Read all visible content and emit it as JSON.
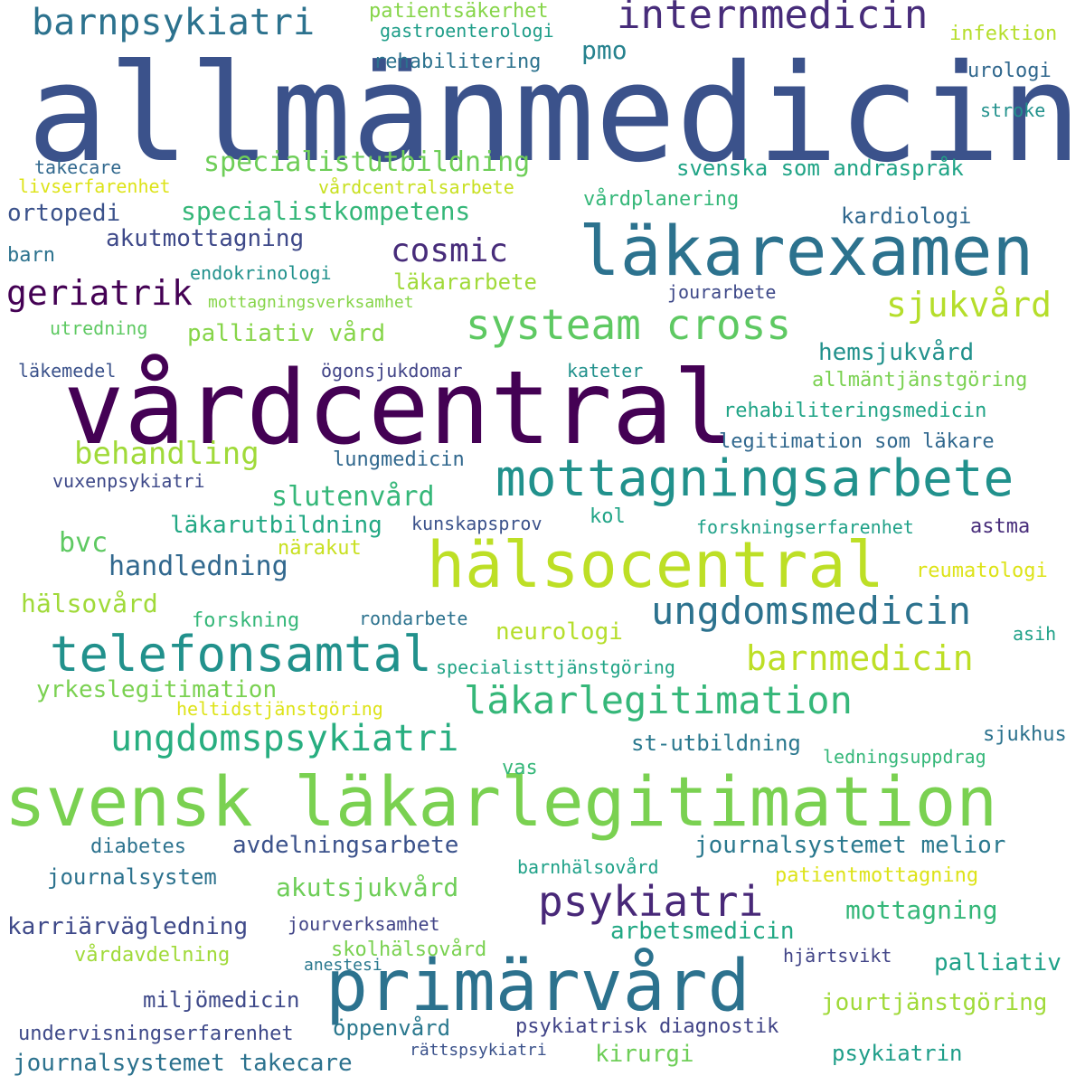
{
  "words": [
    {
      "text": "allmänmedicin",
      "color": "#3b528b"
    },
    {
      "text": "vårdcentral",
      "color": "#440154"
    },
    {
      "text": "svensk läkarlegitimation",
      "color": "#7ad151"
    },
    {
      "text": "primärvård",
      "color": "#2c728e"
    },
    {
      "text": "hälsocentral",
      "color": "#bddf26"
    },
    {
      "text": "läkarexamen",
      "color": "#2c728e"
    },
    {
      "text": "mottagningsarbete",
      "color": "#21918c"
    },
    {
      "text": "telefonsamtal",
      "color": "#21918c"
    },
    {
      "text": "psykiatri",
      "color": "#482878"
    },
    {
      "text": "internmedicin",
      "color": "#472c7a"
    },
    {
      "text": "barnpsykiatri",
      "color": "#2c728e"
    },
    {
      "text": "systeam cross",
      "color": "#5ec962"
    },
    {
      "text": "ungdomsmedicin",
      "color": "#2c728e"
    },
    {
      "text": "läkarlegitimation",
      "color": "#35b779"
    },
    {
      "text": "ungdomspsykiatri",
      "color": "#28ae80"
    },
    {
      "text": "barnmedicin",
      "color": "#bddf26"
    },
    {
      "text": "cosmic",
      "color": "#472c7a"
    },
    {
      "text": "geriatrik",
      "color": "#440154"
    },
    {
      "text": "sjukvård",
      "color": "#b5de2b"
    },
    {
      "text": "specialistutbildning",
      "color": "#6ece58"
    },
    {
      "text": "behandling",
      "color": "#a0da39"
    },
    {
      "text": "slutenvård",
      "color": "#35b779"
    },
    {
      "text": "specialistkompetens",
      "color": "#35b779"
    },
    {
      "text": "pmo",
      "color": "#26828e"
    },
    {
      "text": "svenska som andraspråk",
      "color": "#20a486"
    },
    {
      "text": "handledning",
      "color": "#31688e"
    },
    {
      "text": "akutmottagning",
      "color": "#3e4989"
    },
    {
      "text": "ortopedi",
      "color": "#3b528b"
    },
    {
      "text": "bvc",
      "color": "#5ec962"
    },
    {
      "text": "hälsovård",
      "color": "#a0da39"
    },
    {
      "text": "yrkeslegitimation",
      "color": "#7ad151"
    },
    {
      "text": "avdelningsarbete",
      "color": "#3b528b"
    },
    {
      "text": "akutsjukvård",
      "color": "#6ece58"
    },
    {
      "text": "journalsystemet melior",
      "color": "#2a788e"
    },
    {
      "text": "mottagning",
      "color": "#35b779"
    },
    {
      "text": "arbetsmedicin",
      "color": "#22a884"
    },
    {
      "text": "karriärvägledning",
      "color": "#3e4989"
    },
    {
      "text": "jourtjänstgöring",
      "color": "#a0da39"
    },
    {
      "text": "palliativ",
      "color": "#1fa188"
    },
    {
      "text": "miljömedicin",
      "color": "#3e4989"
    },
    {
      "text": "journalsystemet takecare",
      "color": "#2c728e"
    },
    {
      "text": "öppenvård",
      "color": "#2a788e"
    },
    {
      "text": "psykiatrisk diagnostik",
      "color": "#414487"
    },
    {
      "text": "kirurgi",
      "color": "#6ece58"
    },
    {
      "text": "psykiatrin",
      "color": "#1f9e89"
    },
    {
      "text": "journalsystem",
      "color": "#2c728e"
    },
    {
      "text": "undervisningserfarenhet",
      "color": "#3e4989"
    },
    {
      "text": "läkarutbildning",
      "color": "#22a884"
    },
    {
      "text": "hemsjukvård",
      "color": "#21918c"
    },
    {
      "text": "kardiologi",
      "color": "#31688e"
    },
    {
      "text": "palliativ vård",
      "color": "#86d549"
    },
    {
      "text": "läkararbete",
      "color": "#a0da39"
    },
    {
      "text": "neurologi",
      "color": "#b5de2b"
    },
    {
      "text": "st-utbildning",
      "color": "#2a788e"
    },
    {
      "text": "rehabilitering",
      "color": "#2c728e"
    },
    {
      "text": "patientsäkerhet",
      "color": "#86d549"
    },
    {
      "text": "gastroenterologi",
      "color": "#1f9e89"
    },
    {
      "text": "infektion",
      "color": "#b5de2b"
    },
    {
      "text": "urologi",
      "color": "#31688e"
    },
    {
      "text": "stroke",
      "color": "#21918c"
    },
    {
      "text": "takecare",
      "color": "#31688e"
    },
    {
      "text": "livserfarenhet",
      "color": "#dde318"
    },
    {
      "text": "vårdcentralsarbete",
      "color": "#c8e020"
    },
    {
      "text": "vårdplanering",
      "color": "#35b779"
    },
    {
      "text": "barn",
      "color": "#2c728e"
    },
    {
      "text": "endokrinologi",
      "color": "#21918c"
    },
    {
      "text": "mottagningsverksamhet",
      "color": "#86d549"
    },
    {
      "text": "jourarbete",
      "color": "#3e4989"
    },
    {
      "text": "utredning",
      "color": "#5ec962"
    },
    {
      "text": "läkemedel",
      "color": "#3b528b"
    },
    {
      "text": "ögonsjukdomar",
      "color": "#414487"
    },
    {
      "text": "kateter",
      "color": "#21918c"
    },
    {
      "text": "allmäntjänstgöring",
      "color": "#7ad151"
    },
    {
      "text": "rehabiliteringsmedicin",
      "color": "#20a486"
    },
    {
      "text": "legitimation som läkare",
      "color": "#31688e"
    },
    {
      "text": "lungmedicin",
      "color": "#31688e"
    },
    {
      "text": "vuxenpsykiatri",
      "color": "#3e4989"
    },
    {
      "text": "kunskapsprov",
      "color": "#3b528b"
    },
    {
      "text": "kol",
      "color": "#20a486"
    },
    {
      "text": "forskningserfarenhet",
      "color": "#1fa188"
    },
    {
      "text": "astma",
      "color": "#472c7a"
    },
    {
      "text": "närakut",
      "color": "#c8e020"
    },
    {
      "text": "reumatologi",
      "color": "#dde318"
    },
    {
      "text": "forskning",
      "color": "#35b779"
    },
    {
      "text": "rondarbete",
      "color": "#2c728e"
    },
    {
      "text": "asih",
      "color": "#1fa188"
    },
    {
      "text": "specialisttjänstgöring",
      "color": "#20a486"
    },
    {
      "text": "heltidstjänstgöring",
      "color": "#dde318"
    },
    {
      "text": "sjukhus",
      "color": "#2c728e"
    },
    {
      "text": "ledningsuppdrag",
      "color": "#35b779"
    },
    {
      "text": "vas",
      "color": "#35b779"
    },
    {
      "text": "diabetes",
      "color": "#2c728e"
    },
    {
      "text": "barnhälsovård",
      "color": "#1fa188"
    },
    {
      "text": "patientmottagning",
      "color": "#dde318"
    },
    {
      "text": "jourverksamhet",
      "color": "#414487"
    },
    {
      "text": "skolhälsovård",
      "color": "#7ad151"
    },
    {
      "text": "vårdavdelning",
      "color": "#a0da39"
    },
    {
      "text": "anestesi",
      "color": "#2a788e"
    },
    {
      "text": "hjärtsvikt",
      "color": "#414487"
    },
    {
      "text": "rättspsykiatri",
      "color": "#3b528b"
    }
  ]
}
